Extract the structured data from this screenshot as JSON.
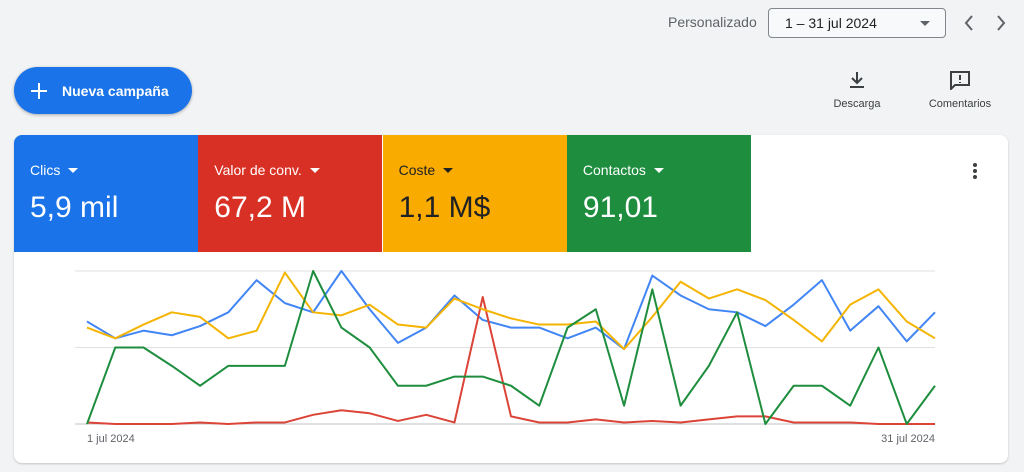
{
  "toolbar": {
    "range_label": "Personalizado",
    "date_range": "1 – 31 jul 2024",
    "new_campaign": "Nueva campaña",
    "download": "Descarga",
    "comments": "Comentarios"
  },
  "chart_data": {
    "type": "line",
    "categories": [
      "1 jul 2024",
      null,
      null,
      null,
      null,
      null,
      null,
      null,
      null,
      null,
      null,
      null,
      null,
      null,
      null,
      null,
      null,
      null,
      null,
      null,
      null,
      null,
      null,
      null,
      null,
      null,
      null,
      null,
      null,
      null,
      "31 jul 2024"
    ],
    "ylim": [
      0,
      100
    ],
    "yticks": [
      0,
      50,
      100
    ],
    "grid": true,
    "series": [
      {
        "name": "Clics",
        "total": "5,9 mil",
        "color": "#4285f4",
        "card_color": "#1a73e8",
        "text_color": "#ffffff",
        "values": [
          67,
          56,
          61,
          58,
          64,
          73,
          94,
          79,
          73,
          100,
          75,
          53,
          63,
          84,
          68,
          63,
          63,
          56,
          63,
          49,
          97,
          84,
          75,
          73,
          64,
          78,
          94,
          61,
          77,
          54,
          73
        ]
      },
      {
        "name": "Valor de conv.",
        "total": "67,2 M",
        "color": "#db4437",
        "card_color": "#d93025",
        "text_color": "#ffffff",
        "values": [
          1,
          0,
          0,
          0,
          1,
          0,
          1,
          1,
          6,
          9,
          7,
          2,
          6,
          1,
          83,
          5,
          1,
          1,
          3,
          1,
          2,
          1,
          3,
          5,
          5,
          1,
          1,
          1,
          0,
          0,
          0
        ]
      },
      {
        "name": "Coste",
        "total": "1,1 M$",
        "color": "#f4b400",
        "card_color": "#f9ab00",
        "text_color": "#202124",
        "values": [
          63,
          56,
          65,
          73,
          70,
          56,
          61,
          99,
          73,
          71,
          78,
          65,
          63,
          82,
          75,
          69,
          65,
          65,
          67,
          49,
          70,
          93,
          82,
          88,
          81,
          68,
          54,
          78,
          88,
          67,
          56
        ]
      },
      {
        "name": "Contactos",
        "total": "91,01",
        "color": "#1e8e3e",
        "card_color": "#1e8e3e",
        "text_color": "#ffffff",
        "values": [
          0,
          50,
          50,
          38,
          25,
          38,
          38,
          38,
          100,
          63,
          50,
          25,
          25,
          31,
          31,
          25,
          12,
          63,
          75,
          12,
          88,
          12,
          38,
          73,
          0,
          25,
          25,
          12,
          50,
          0,
          25
        ]
      }
    ]
  }
}
